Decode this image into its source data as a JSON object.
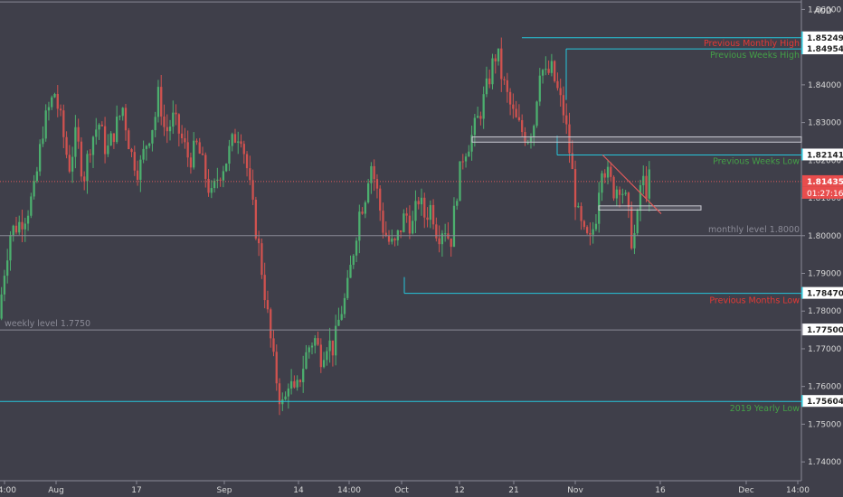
{
  "chart_data": {
    "type": "candlestick",
    "currency_label": "AUD",
    "ylim": [
      1.735,
      1.8625
    ],
    "y_ticks": [
      {
        "v": 1.86,
        "label": "1.86000"
      },
      {
        "v": 1.84,
        "label": "1.84000"
      },
      {
        "v": 1.83,
        "label": "1.83000"
      },
      {
        "v": 1.81,
        "label": "1.81000"
      },
      {
        "v": 1.8,
        "label": "1.80000"
      },
      {
        "v": 1.79,
        "label": "1.79000"
      },
      {
        "v": 1.78,
        "label": "1.78000"
      },
      {
        "v": 1.77,
        "label": "1.77000"
      },
      {
        "v": 1.76,
        "label": "1.76000"
      },
      {
        "v": 1.75,
        "label": "1.75000"
      },
      {
        "v": 1.74,
        "label": "1.74000"
      }
    ],
    "y_tick_partial": {
      "v": 1.82,
      "label": "1.82000"
    },
    "x_ticks": [
      "14:00",
      "Aug",
      "17",
      "Sep",
      "14",
      "14:00",
      "Oct",
      "12",
      "21",
      "Nov",
      "16",
      "Dec",
      "14:00"
    ],
    "levels": [
      {
        "name": "previous-monthly-high",
        "value": 1.85249,
        "label": "1.85249",
        "annotation": "Previous Monthly High",
        "color": "#26c6da"
      },
      {
        "name": "previous-weeks-high",
        "value": 1.84954,
        "label": "1.84954",
        "annotation": "Previous Weeks High",
        "color": "#26c6da"
      },
      {
        "name": "previous-weeks-low",
        "value": 1.82141,
        "label": "1.82141",
        "annotation": "Previous Weeks Low",
        "color": "#26c6da"
      },
      {
        "name": "monthly-level",
        "value": 1.8,
        "label": "",
        "annotation": "monthly level 1.8000",
        "color": "#8a8a96"
      },
      {
        "name": "previous-months-low",
        "value": 1.7847,
        "label": "1.78470",
        "annotation": "Previous Months Low",
        "color": "#26c6da"
      },
      {
        "name": "weekly-level",
        "value": 1.775,
        "label": "1.77500",
        "annotation": "weekly level 1.7750",
        "color": "#8a8a96"
      },
      {
        "name": "yearly-low-2019",
        "value": 1.75604,
        "label": "1.75604",
        "annotation": "2019 Yearly Low",
        "color": "#26c6da"
      },
      {
        "name": "top-line",
        "value": 1.862,
        "label": "",
        "annotation": "",
        "color": "#8a8a96"
      }
    ],
    "current_price": {
      "value": 1.81435,
      "label": "1.81435",
      "countdown": "01:27:16"
    },
    "zones": [
      {
        "y1": 1.8262,
        "y2": 1.8248
      },
      {
        "y1": 1.8079,
        "y2": 1.8068
      }
    ],
    "trendline": {
      "from": [
        0.752,
        1.8214
      ],
      "to": [
        0.825,
        1.8058
      ]
    },
    "series": [
      {
        "x": 0.0,
        "y": 1.778
      },
      {
        "x": 0.008,
        "y": 1.792
      },
      {
        "x": 0.015,
        "y": 1.801
      },
      {
        "x": 0.025,
        "y": 1.803
      },
      {
        "x": 0.035,
        "y": 1.806
      },
      {
        "x": 0.045,
        "y": 1.812
      },
      {
        "x": 0.055,
        "y": 1.828
      },
      {
        "x": 0.062,
        "y": 1.833
      },
      {
        "x": 0.07,
        "y": 1.838
      },
      {
        "x": 0.078,
        "y": 1.83
      },
      {
        "x": 0.088,
        "y": 1.818
      },
      {
        "x": 0.097,
        "y": 1.827
      },
      {
        "x": 0.106,
        "y": 1.815
      },
      {
        "x": 0.115,
        "y": 1.825
      },
      {
        "x": 0.125,
        "y": 1.83
      },
      {
        "x": 0.135,
        "y": 1.822
      },
      {
        "x": 0.145,
        "y": 1.828
      },
      {
        "x": 0.155,
        "y": 1.834
      },
      {
        "x": 0.165,
        "y": 1.822
      },
      {
        "x": 0.175,
        "y": 1.817
      },
      {
        "x": 0.185,
        "y": 1.825
      },
      {
        "x": 0.195,
        "y": 1.831
      },
      {
        "x": 0.2,
        "y": 1.838
      },
      {
        "x": 0.208,
        "y": 1.827
      },
      {
        "x": 0.218,
        "y": 1.831
      },
      {
        "x": 0.228,
        "y": 1.826
      },
      {
        "x": 0.238,
        "y": 1.82
      },
      {
        "x": 0.248,
        "y": 1.824
      },
      {
        "x": 0.258,
        "y": 1.816
      },
      {
        "x": 0.266,
        "y": 1.81
      },
      {
        "x": 0.274,
        "y": 1.816
      },
      {
        "x": 0.284,
        "y": 1.82
      },
      {
        "x": 0.294,
        "y": 1.826
      },
      {
        "x": 0.302,
        "y": 1.828
      },
      {
        "x": 0.31,
        "y": 1.818
      },
      {
        "x": 0.318,
        "y": 1.806
      },
      {
        "x": 0.326,
        "y": 1.795
      },
      {
        "x": 0.334,
        "y": 1.782
      },
      {
        "x": 0.342,
        "y": 1.768
      },
      {
        "x": 0.35,
        "y": 1.758
      },
      {
        "x": 0.356,
        "y": 1.754
      },
      {
        "x": 0.362,
        "y": 1.762
      },
      {
        "x": 0.37,
        "y": 1.757
      },
      {
        "x": 0.378,
        "y": 1.764
      },
      {
        "x": 0.386,
        "y": 1.77
      },
      {
        "x": 0.394,
        "y": 1.773
      },
      {
        "x": 0.402,
        "y": 1.768
      },
      {
        "x": 0.41,
        "y": 1.772
      },
      {
        "x": 0.418,
        "y": 1.77
      },
      {
        "x": 0.426,
        "y": 1.779
      },
      {
        "x": 0.434,
        "y": 1.784
      },
      {
        "x": 0.442,
        "y": 1.795
      },
      {
        "x": 0.45,
        "y": 1.806
      },
      {
        "x": 0.457,
        "y": 1.81
      },
      {
        "x": 0.464,
        "y": 1.82
      },
      {
        "x": 0.472,
        "y": 1.812
      },
      {
        "x": 0.48,
        "y": 1.802
      },
      {
        "x": 0.488,
        "y": 1.798
      },
      {
        "x": 0.494,
        "y": 1.797
      },
      {
        "x": 0.5,
        "y": 1.801
      },
      {
        "x": 0.508,
        "y": 1.806
      },
      {
        "x": 0.516,
        "y": 1.802
      },
      {
        "x": 0.524,
        "y": 1.81
      },
      {
        "x": 0.532,
        "y": 1.805
      },
      {
        "x": 0.54,
        "y": 1.808
      },
      {
        "x": 0.548,
        "y": 1.8
      },
      {
        "x": 0.556,
        "y": 1.803
      },
      {
        "x": 0.564,
        "y": 1.798
      },
      {
        "x": 0.572,
        "y": 1.812
      },
      {
        "x": 0.58,
        "y": 1.822
      },
      {
        "x": 0.59,
        "y": 1.826
      },
      {
        "x": 0.6,
        "y": 1.832
      },
      {
        "x": 0.608,
        "y": 1.838
      },
      {
        "x": 0.616,
        "y": 1.845
      },
      {
        "x": 0.622,
        "y": 1.849
      },
      {
        "x": 0.628,
        "y": 1.842
      },
      {
        "x": 0.636,
        "y": 1.836
      },
      {
        "x": 0.644,
        "y": 1.831
      },
      {
        "x": 0.652,
        "y": 1.828
      },
      {
        "x": 0.66,
        "y": 1.826
      },
      {
        "x": 0.668,
        "y": 1.83
      },
      {
        "x": 0.676,
        "y": 1.846
      },
      {
        "x": 0.682,
        "y": 1.842
      },
      {
        "x": 0.69,
        "y": 1.844
      },
      {
        "x": 0.698,
        "y": 1.838
      },
      {
        "x": 0.706,
        "y": 1.832
      },
      {
        "x": 0.714,
        "y": 1.82
      },
      {
        "x": 0.722,
        "y": 1.806
      },
      {
        "x": 0.73,
        "y": 1.8
      },
      {
        "x": 0.738,
        "y": 1.798
      },
      {
        "x": 0.746,
        "y": 1.806
      },
      {
        "x": 0.752,
        "y": 1.82
      },
      {
        "x": 0.76,
        "y": 1.816
      },
      {
        "x": 0.768,
        "y": 1.812
      },
      {
        "x": 0.776,
        "y": 1.814
      },
      {
        "x": 0.784,
        "y": 1.808
      },
      {
        "x": 0.79,
        "y": 1.799
      },
      {
        "x": 0.796,
        "y": 1.801
      },
      {
        "x": 0.802,
        "y": 1.816
      },
      {
        "x": 0.808,
        "y": 1.812
      },
      {
        "x": 0.812,
        "y": 1.815
      }
    ]
  }
}
